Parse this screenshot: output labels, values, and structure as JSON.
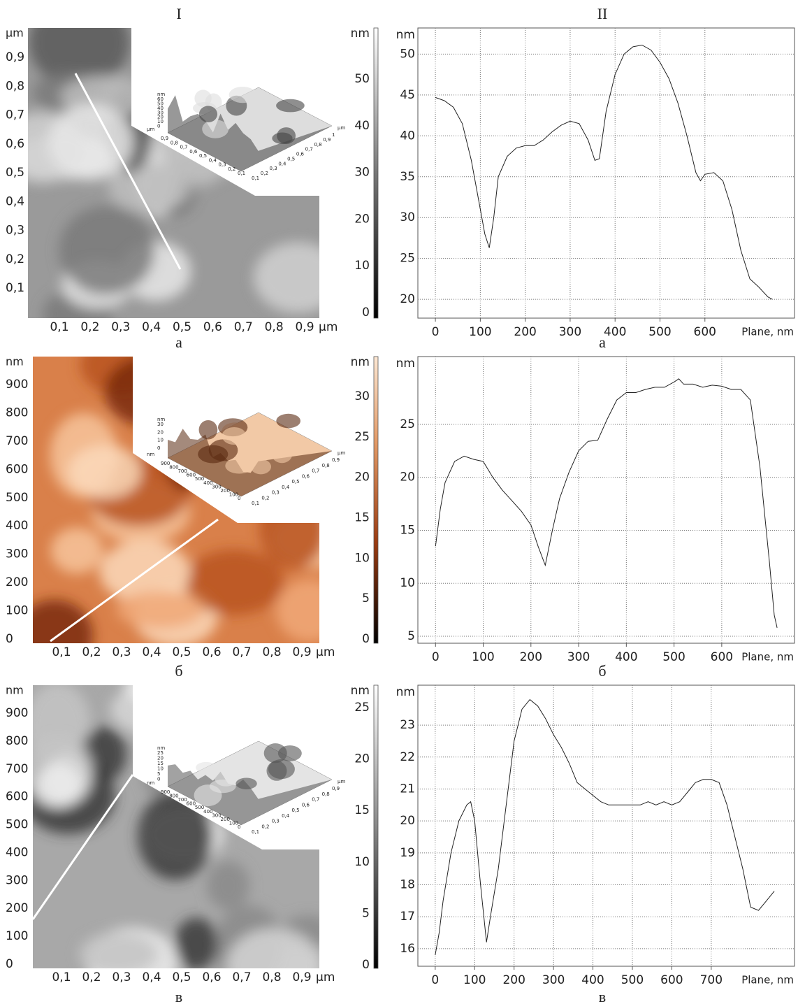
{
  "column_titles": [
    "I",
    "II"
  ],
  "afm_images": [
    {
      "y_unit": "μm",
      "x_unit": "μm",
      "y_ticks": [
        "0,1",
        "0,2",
        "0,3",
        "0,4",
        "0,5",
        "0,6",
        "0,7",
        "0,8",
        "0,9"
      ],
      "x_ticks": [
        "0,1",
        "0,2",
        "0,3",
        "0,4",
        "0,5",
        "0,6",
        "0,7",
        "0,8",
        "0,9"
      ],
      "colorbar_unit": "nm",
      "colorbar_ticks": [
        "0",
        "10",
        "20",
        "30",
        "40",
        "50"
      ],
      "inset": {
        "z_unit": "nm",
        "z_ticks": [
          "60",
          "50",
          "40",
          "30",
          "20",
          "10",
          "0"
        ],
        "left_unit": "μm",
        "left_ticks": [
          "0,9",
          "0,8",
          "0,7",
          "0,6",
          "0,5",
          "0,4",
          "0,3",
          "0,2",
          "0,1"
        ],
        "right_ticks": [
          "0,1",
          "0,2",
          "0,3",
          "0,4",
          "0,5",
          "0,6",
          "0,7",
          "0,8",
          "0,9",
          "1"
        ],
        "right_unit": "μm"
      },
      "caption": "а"
    },
    {
      "y_unit": "nm",
      "x_unit": "μm",
      "y_ticks": [
        "0",
        "100",
        "200",
        "300",
        "400",
        "500",
        "600",
        "700",
        "800",
        "900"
      ],
      "x_ticks": [
        "0,1",
        "0,2",
        "0,3",
        "0,4",
        "0,5",
        "0,6",
        "0,7",
        "0,8",
        "0,9"
      ],
      "colorbar_unit": "nm",
      "colorbar_ticks": [
        "0",
        "5",
        "10",
        "15",
        "20",
        "25",
        "30"
      ],
      "inset": {
        "z_unit": "nm",
        "z_ticks": [
          "30",
          "20",
          "10",
          "0"
        ],
        "left_unit": "nm",
        "left_ticks": [
          "900",
          "800",
          "700",
          "600",
          "500",
          "400",
          "300",
          "200",
          "100",
          "0"
        ],
        "right_ticks": [
          "0,1",
          "0,2",
          "0,3",
          "0,4",
          "0,5",
          "0,6",
          "0,7",
          "0,8",
          "0,9"
        ],
        "right_unit": "μm"
      },
      "caption": "б"
    },
    {
      "y_unit": "nm",
      "x_unit": "μm",
      "y_ticks": [
        "0",
        "100",
        "200",
        "300",
        "400",
        "500",
        "600",
        "700",
        "800",
        "900"
      ],
      "x_ticks": [
        "0,1",
        "0,2",
        "0,3",
        "0,4",
        "0,5",
        "0,6",
        "0,7",
        "0,8",
        "0,9"
      ],
      "colorbar_unit": "nm",
      "colorbar_ticks": [
        "0",
        "5",
        "10",
        "15",
        "20",
        "25"
      ],
      "inset": {
        "z_unit": "nm",
        "z_ticks": [
          "25",
          "20",
          "15",
          "10",
          "5",
          "0"
        ],
        "left_unit": "nm",
        "left_ticks": [
          "900",
          "800",
          "700",
          "600",
          "500",
          "400",
          "300",
          "200",
          "100",
          "0"
        ],
        "right_ticks": [
          "0,1",
          "0,2",
          "0,3",
          "0,4",
          "0,5",
          "0,6",
          "0,7",
          "0,8",
          "0,9"
        ],
        "right_unit": "μm"
      },
      "caption": "в"
    }
  ],
  "chart_data": [
    {
      "type": "line",
      "ylabel": "nm",
      "xlabel": "Plane, nm",
      "caption": "а",
      "grid": true,
      "xlim": [
        -39,
        801
      ],
      "ylim": [
        17.7,
        53.2
      ],
      "xticks": [
        0,
        100,
        200,
        300,
        400,
        500,
        600
      ],
      "yticks": [
        20,
        25,
        30,
        35,
        40,
        45,
        50
      ],
      "x": [
        0,
        20,
        40,
        60,
        80,
        100,
        110,
        120,
        130,
        140,
        160,
        180,
        200,
        220,
        240,
        260,
        280,
        300,
        320,
        340,
        355,
        365,
        380,
        400,
        420,
        440,
        460,
        480,
        500,
        520,
        540,
        560,
        580,
        590,
        600,
        620,
        640,
        660,
        680,
        700,
        720,
        740,
        750
      ],
      "series": [
        {
          "color": "#222222",
          "values": [
            44.7,
            44.3,
            43.5,
            41.5,
            37,
            31,
            28,
            26.3,
            30,
            35,
            37.5,
            38.5,
            38.8,
            38.8,
            39.5,
            40.5,
            41.3,
            41.8,
            41.5,
            39.5,
            37,
            37.2,
            43,
            47.5,
            50,
            50.9,
            51.1,
            50.5,
            49,
            47,
            44,
            40,
            35.5,
            34.5,
            35.3,
            35.5,
            34.5,
            31,
            26,
            22.5,
            21.5,
            20.3,
            20
          ]
        }
      ]
    },
    {
      "type": "line",
      "ylabel": "nm",
      "xlabel": "Plane, nm",
      "caption": "б",
      "grid": true,
      "xlim": [
        -37,
        754
      ],
      "ylim": [
        4.34,
        31.4
      ],
      "xticks": [
        0,
        100,
        200,
        300,
        400,
        500,
        600
      ],
      "yticks": [
        5,
        10,
        15,
        20,
        25
      ],
      "x": [
        0,
        10,
        20,
        40,
        60,
        80,
        100,
        120,
        140,
        160,
        180,
        200,
        215,
        230,
        245,
        260,
        280,
        300,
        320,
        340,
        360,
        380,
        400,
        420,
        440,
        460,
        480,
        500,
        510,
        520,
        540,
        560,
        580,
        600,
        620,
        640,
        660,
        680,
        700,
        710,
        716
      ],
      "series": [
        {
          "color": "#222222",
          "values": [
            13.5,
            17,
            19.5,
            21.5,
            22,
            21.7,
            21.5,
            20,
            18.8,
            17.8,
            16.8,
            15.5,
            13.5,
            11.7,
            15,
            18,
            20.5,
            22.5,
            23.4,
            23.5,
            25.5,
            27.3,
            28,
            28,
            28.3,
            28.5,
            28.5,
            29,
            29.3,
            28.8,
            28.8,
            28.5,
            28.7,
            28.6,
            28.3,
            28.3,
            27.3,
            21,
            12,
            7,
            5.8
          ]
        }
      ]
    },
    {
      "type": "line",
      "ylabel": "nm",
      "xlabel": "Plane, nm",
      "caption": "в",
      "grid": true,
      "xlim": [
        -44,
        913
      ],
      "ylim": [
        15.45,
        24.25
      ],
      "xticks": [
        0,
        100,
        200,
        300,
        400,
        500,
        600,
        700
      ],
      "yticks": [
        16,
        17,
        18,
        19,
        20,
        21,
        22,
        23
      ],
      "x": [
        0,
        10,
        20,
        40,
        60,
        80,
        90,
        100,
        115,
        130,
        140,
        160,
        180,
        200,
        220,
        240,
        260,
        280,
        300,
        320,
        340,
        360,
        380,
        400,
        420,
        440,
        460,
        480,
        500,
        520,
        540,
        560,
        580,
        600,
        620,
        640,
        660,
        680,
        700,
        720,
        740,
        760,
        780,
        800,
        820,
        840,
        860
      ],
      "series": [
        {
          "color": "#222222",
          "values": [
            15.8,
            16.5,
            17.5,
            19,
            20,
            20.5,
            20.6,
            20,
            18,
            16.2,
            17,
            18.5,
            20.5,
            22.5,
            23.5,
            23.8,
            23.6,
            23.2,
            22.7,
            22.3,
            21.8,
            21.2,
            21,
            20.8,
            20.6,
            20.5,
            20.5,
            20.5,
            20.5,
            20.5,
            20.6,
            20.5,
            20.6,
            20.5,
            20.6,
            20.9,
            21.2,
            21.3,
            21.3,
            21.2,
            20.5,
            19.5,
            18.5,
            17.3,
            17.2,
            17.5,
            17.8
          ]
        }
      ]
    }
  ]
}
